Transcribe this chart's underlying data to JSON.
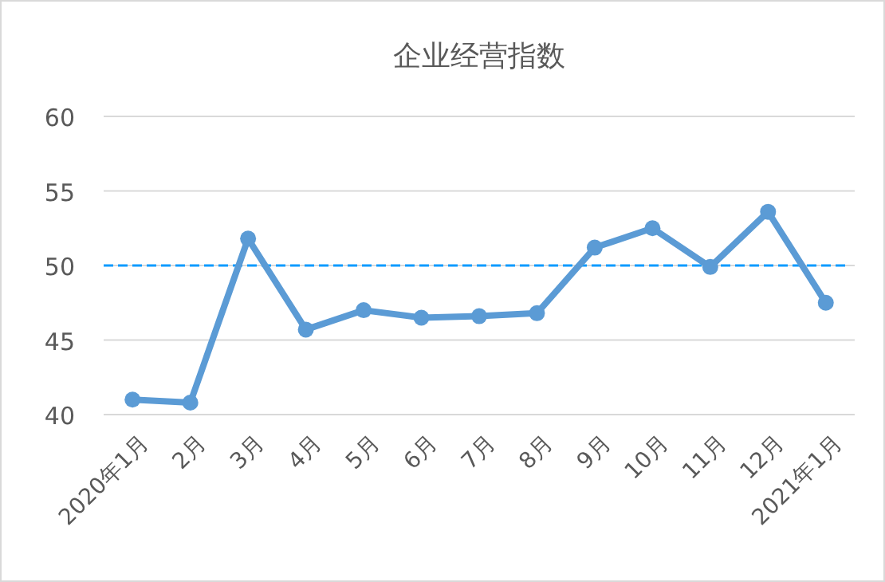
{
  "chart_data": {
    "type": "line",
    "title": "企业经营指数",
    "categories": [
      "2020年1月",
      "2月",
      "3月",
      "4月",
      "5月",
      "6月",
      "7月",
      "8月",
      "9月",
      "10月",
      "11月",
      "12月",
      "2021年1月"
    ],
    "series": [
      {
        "color": "#5b9bd5",
        "values": [
          41.0,
          40.8,
          51.8,
          45.7,
          47.0,
          46.5,
          46.6,
          46.8,
          51.2,
          52.5,
          49.9,
          53.6,
          47.5
        ]
      }
    ],
    "ylim": [
      40,
      60
    ],
    "yticks": [
      40,
      45,
      50,
      55,
      60
    ],
    "grid": "y",
    "marker": "circle",
    "ref_lines": [
      {
        "axis": "y",
        "value": 50,
        "color": "#0f9bff",
        "line_style": "dashed"
      }
    ]
  }
}
